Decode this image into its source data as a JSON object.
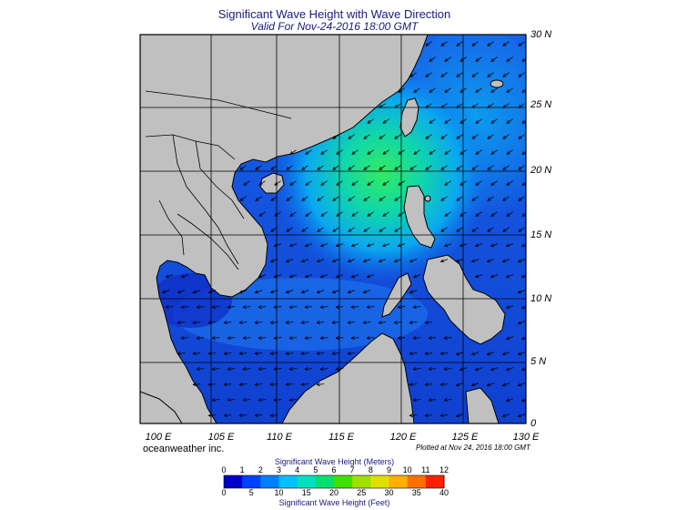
{
  "header": {
    "title": "Significant Wave Height with Wave Direction",
    "subtitle": "Valid For Nov-24-2016 18:00 GMT"
  },
  "map": {
    "lon_range": [
      100,
      130
    ],
    "lat_range": [
      0,
      30
    ],
    "lat_labels": [
      "30 N",
      "25 N",
      "20 N",
      "15 N",
      "10 N",
      "5 N",
      "0"
    ],
    "lon_labels": [
      "100 E",
      "105 E",
      "110 E",
      "115 E",
      "120 E",
      "125 E",
      "130 E"
    ],
    "land_color": "#c0c0c0",
    "ocean_base_color": "#1a55e0",
    "peak_color": "#2ee86a",
    "arrow_color": "#000000"
  },
  "footer": {
    "credit": "oceanweather inc.",
    "plotted": "Plotted at Nov 24, 2016 18:00 GMT"
  },
  "legend": {
    "meters_title": "Significant Wave Height (Meters)",
    "feet_title": "Significant Wave Height (Feet)",
    "meters_ticks": [
      "0",
      "1",
      "2",
      "3",
      "4",
      "5",
      "6",
      "7",
      "8",
      "9",
      "10",
      "11",
      "12"
    ],
    "feet_ticks": [
      "0",
      "5",
      "10",
      "15",
      "20",
      "25",
      "30",
      "35",
      "40"
    ],
    "colors": [
      "#0000c8",
      "#0040ff",
      "#0080ff",
      "#00c0ff",
      "#00e0c0",
      "#00e070",
      "#40e000",
      "#a0e000",
      "#e0e000",
      "#ffb000",
      "#ff7000",
      "#ff2000"
    ]
  }
}
